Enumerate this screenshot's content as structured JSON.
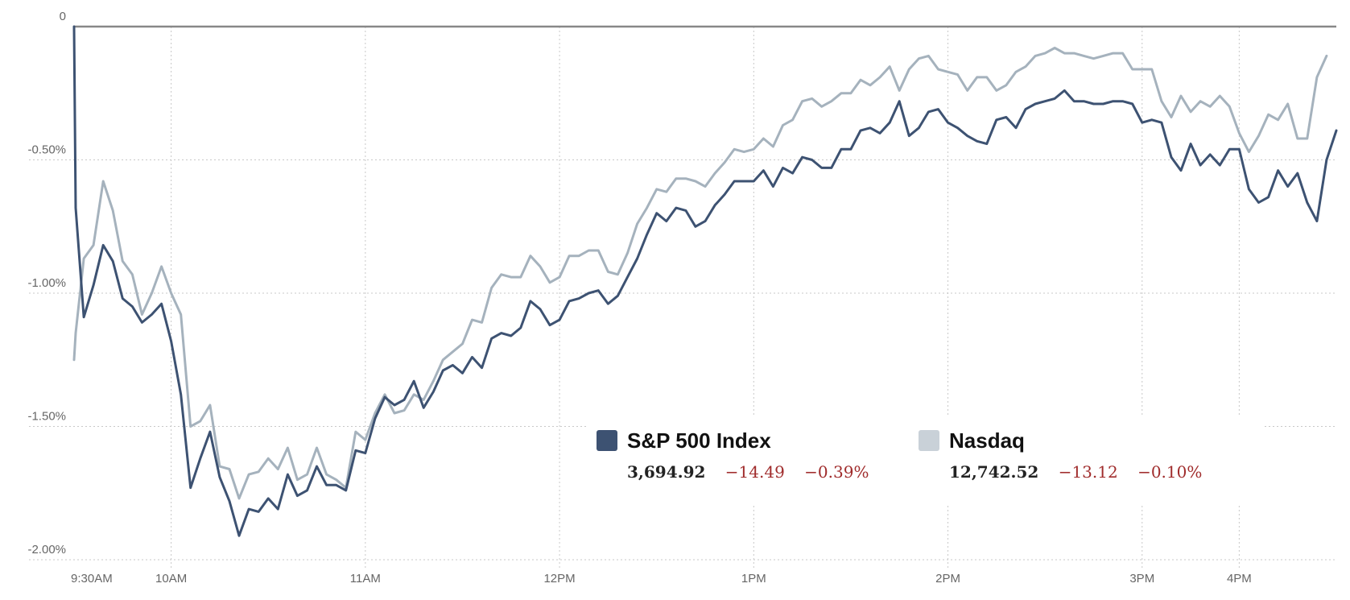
{
  "chart_data": {
    "type": "line",
    "title": "",
    "xlabel": "",
    "ylabel": "",
    "ylim": [
      -2.0,
      0
    ],
    "y_ticks": [
      {
        "value": 0,
        "label": "0"
      },
      {
        "value": -0.5,
        "label": "-0.50%"
      },
      {
        "value": -1.0,
        "label": "-1.00%"
      },
      {
        "value": -1.5,
        "label": "-1.50%"
      },
      {
        "value": -2.0,
        "label": "-2.00%"
      }
    ],
    "x_ticks": [
      {
        "value": 0,
        "label": "9:30AM"
      },
      {
        "value": 30,
        "label": "10AM"
      },
      {
        "value": 90,
        "label": "11AM"
      },
      {
        "value": 150,
        "label": "12PM"
      },
      {
        "value": 210,
        "label": "1PM"
      },
      {
        "value": 270,
        "label": "2PM"
      },
      {
        "value": 330,
        "label": "3PM"
      },
      {
        "value": 360,
        "label": "4PM"
      }
    ],
    "x_range_minutes": [
      0,
      390
    ],
    "grid": true,
    "legend_position": "bottom-right",
    "series": [
      {
        "name": "S&P 500 Index",
        "color": "#3d5272",
        "value": "3,694.92",
        "change": "−14.49",
        "pct": "−0.39%",
        "minutes": [
          0,
          0.5,
          3,
          6,
          9,
          12,
          15,
          18,
          21,
          24,
          27,
          30,
          33,
          36,
          39,
          42,
          45,
          48,
          51,
          54,
          57,
          60,
          63,
          66,
          69,
          72,
          75,
          78,
          81,
          84,
          87,
          90,
          93,
          96,
          99,
          102,
          105,
          108,
          111,
          114,
          117,
          120,
          123,
          126,
          129,
          132,
          135,
          138,
          141,
          144,
          147,
          150,
          153,
          156,
          159,
          162,
          165,
          168,
          171,
          174,
          177,
          180,
          183,
          186,
          189,
          192,
          195,
          198,
          201,
          204,
          207,
          210,
          213,
          216,
          219,
          222,
          225,
          228,
          231,
          234,
          237,
          240,
          243,
          246,
          249,
          252,
          255,
          258,
          261,
          264,
          267,
          270,
          273,
          276,
          279,
          282,
          285,
          288,
          291,
          294,
          297,
          300,
          303,
          306,
          309,
          312,
          315,
          318,
          321,
          324,
          327,
          330,
          333,
          336,
          339,
          342,
          345,
          348,
          351,
          354,
          357,
          360,
          363,
          366,
          369,
          372,
          375,
          378,
          381,
          384,
          387,
          390
        ],
        "values": [
          0,
          -0.68,
          -1.09,
          -0.97,
          -0.82,
          -0.88,
          -1.02,
          -1.05,
          -1.11,
          -1.08,
          -1.04,
          -1.18,
          -1.38,
          -1.73,
          -1.62,
          -1.52,
          -1.69,
          -1.78,
          -1.91,
          -1.81,
          -1.82,
          -1.77,
          -1.81,
          -1.68,
          -1.76,
          -1.74,
          -1.65,
          -1.72,
          -1.72,
          -1.74,
          -1.59,
          -1.6,
          -1.47,
          -1.39,
          -1.42,
          -1.4,
          -1.33,
          -1.43,
          -1.37,
          -1.29,
          -1.27,
          -1.3,
          -1.24,
          -1.28,
          -1.17,
          -1.15,
          -1.16,
          -1.13,
          -1.03,
          -1.06,
          -1.12,
          -1.1,
          -1.03,
          -1.02,
          -1.0,
          -0.99,
          -1.04,
          -1.01,
          -0.94,
          -0.87,
          -0.78,
          -0.7,
          -0.73,
          -0.68,
          -0.69,
          -0.75,
          -0.73,
          -0.67,
          -0.63,
          -0.58,
          -0.58,
          -0.58,
          -0.54,
          -0.6,
          -0.53,
          -0.55,
          -0.49,
          -0.5,
          -0.53,
          -0.53,
          -0.46,
          -0.46,
          -0.39,
          -0.38,
          -0.4,
          -0.36,
          -0.28,
          -0.41,
          -0.38,
          -0.32,
          -0.31,
          -0.36,
          -0.38,
          -0.41,
          -0.43,
          -0.44,
          -0.35,
          -0.34,
          -0.38,
          -0.31,
          -0.29,
          -0.28,
          -0.27,
          -0.24,
          -0.28,
          -0.28,
          -0.29,
          -0.29,
          -0.28,
          -0.28,
          -0.29,
          -0.36,
          -0.35,
          -0.36,
          -0.49,
          -0.54,
          -0.44,
          -0.52,
          -0.48,
          -0.52,
          -0.46,
          -0.46,
          -0.61,
          -0.66,
          -0.64,
          -0.54,
          -0.6,
          -0.55,
          -0.66,
          -0.73,
          -0.5,
          -0.39
        ]
      },
      {
        "name": "Nasdaq",
        "color": "#a5b2bd",
        "value": "12,742.52",
        "change": "−13.12",
        "pct": "−0.10%",
        "minutes": [
          0,
          0.5,
          3,
          6,
          9,
          12,
          15,
          18,
          21,
          24,
          27,
          30,
          33,
          36,
          39,
          42,
          45,
          48,
          51,
          54,
          57,
          60,
          63,
          66,
          69,
          72,
          75,
          78,
          81,
          84,
          87,
          90,
          93,
          96,
          99,
          102,
          105,
          108,
          111,
          114,
          117,
          120,
          123,
          126,
          129,
          132,
          135,
          138,
          141,
          144,
          147,
          150,
          153,
          156,
          159,
          162,
          165,
          168,
          171,
          174,
          177,
          180,
          183,
          186,
          189,
          192,
          195,
          198,
          201,
          204,
          207,
          210,
          213,
          216,
          219,
          222,
          225,
          228,
          231,
          234,
          237,
          240,
          243,
          246,
          249,
          252,
          255,
          258,
          261,
          264,
          267,
          270,
          273,
          276,
          279,
          282,
          285,
          288,
          291,
          294,
          297,
          300,
          303,
          306,
          309,
          312,
          315,
          318,
          321,
          324,
          327,
          330,
          333,
          336,
          339,
          342,
          345,
          348,
          351,
          354,
          357,
          360,
          363,
          366,
          369,
          372,
          375,
          378,
          381,
          384,
          387,
          390
        ],
        "values": [
          -1.25,
          -1.15,
          -0.87,
          -0.82,
          -0.58,
          -0.69,
          -0.88,
          -0.93,
          -1.08,
          -1.0,
          -0.9,
          -1.0,
          -1.08,
          -1.5,
          -1.48,
          -1.42,
          -1.65,
          -1.66,
          -1.77,
          -1.68,
          -1.67,
          -1.62,
          -1.66,
          -1.58,
          -1.7,
          -1.68,
          -1.58,
          -1.68,
          -1.7,
          -1.73,
          -1.52,
          -1.55,
          -1.45,
          -1.38,
          -1.45,
          -1.44,
          -1.38,
          -1.4,
          -1.33,
          -1.25,
          -1.22,
          -1.19,
          -1.1,
          -1.11,
          -0.98,
          -0.93,
          -0.94,
          -0.94,
          -0.86,
          -0.9,
          -0.96,
          -0.94,
          -0.86,
          -0.86,
          -0.84,
          -0.84,
          -0.92,
          -0.93,
          -0.85,
          -0.74,
          -0.68,
          -0.61,
          -0.62,
          -0.57,
          -0.57,
          -0.58,
          -0.6,
          -0.55,
          -0.51,
          -0.46,
          -0.47,
          -0.46,
          -0.42,
          -0.45,
          -0.37,
          -0.35,
          -0.28,
          -0.27,
          -0.3,
          -0.28,
          -0.25,
          -0.25,
          -0.2,
          -0.22,
          -0.19,
          -0.15,
          -0.24,
          -0.16,
          -0.12,
          -0.11,
          -0.16,
          -0.17,
          -0.18,
          -0.24,
          -0.19,
          -0.19,
          -0.24,
          -0.22,
          -0.17,
          -0.15,
          -0.11,
          -0.1,
          -0.08,
          -0.1,
          -0.1,
          -0.11,
          -0.12,
          -0.11,
          -0.1,
          -0.1,
          -0.16,
          -0.16,
          -0.16,
          -0.28,
          -0.34,
          -0.26,
          -0.32,
          -0.28,
          -0.3,
          -0.26,
          -0.3,
          -0.4,
          -0.47,
          -0.41,
          -0.33,
          -0.35,
          -0.29,
          -0.42,
          -0.42,
          -0.19,
          -0.11
        ]
      }
    ]
  }
}
